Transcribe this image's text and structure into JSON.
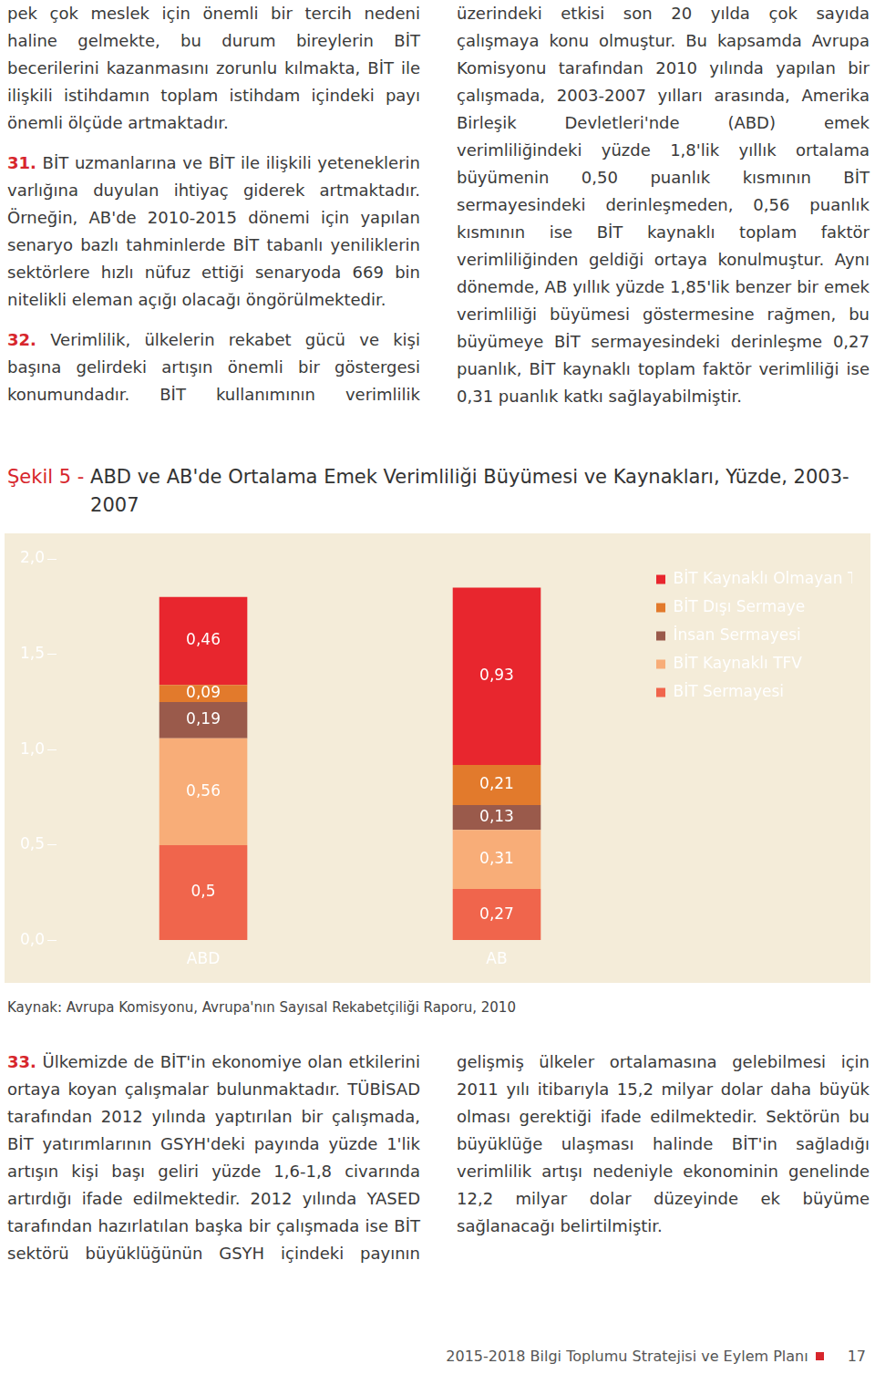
{
  "page": {
    "top_text": [
      {
        "number": null,
        "text": "pek çok meslek için önemli bir tercih nedeni haline gelmekte, bu durum bireylerin BİT becerilerini kazanmasını zorunlu kılmakta, BİT ile ilişkili istihdamın toplam istihdam içindeki payı önemli ölçüde artmaktadır."
      },
      {
        "number": "31.",
        "text": "BİT uzmanlarına ve BİT ile ilişkili yeteneklerin varlığına duyulan ihtiyaç giderek artmaktadır. Örneğin, AB'de 2010-2015 dönemi için yapılan senaryo bazlı tahminlerde BİT tabanlı yeniliklerin sektörlere hızlı nüfuz ettiği senaryoda 669 bin nitelikli eleman açığı olacağı öngörülmektedir."
      },
      {
        "number": "32.",
        "text": "Verimlilik, ülkelerin rekabet gücü ve kişi başına gelirdeki artışın önemli bir göstergesi konumundadır. BİT kullanımının verimlilik üzerindeki etkisi son 20 yılda çok sayıda çalışmaya konu olmuştur. Bu kapsamda Avrupa Komisyonu tarafından 2010 yılında yapılan bir çalışmada, 2003-2007 yılları arasında, Amerika Birleşik Devletleri'nde (ABD) emek verimliliğindeki yüzde 1,8'lik yıllık ortalama büyümenin 0,50 puanlık kısmının BİT sermayesindeki derinleşmeden, 0,56 puanlık kısmının ise BİT kaynaklı toplam faktör verimliliğinden geldiği ortaya konulmuştur. Aynı dönemde, AB yıllık yüzde 1,85'lik benzer bir emek verimliliği büyümesi göstermesine rağmen, bu büyümeye BİT sermayesindeki derinleşme 0,27 puanlık, BİT kaynaklı toplam faktör verimliliği ise 0,31 puanlık katkı sağlayabilmiştir."
      }
    ],
    "figure": {
      "label": "Şekil 5 - ",
      "source": "Kaynak: Avrupa Komisyonu, Avrupa'nın Sayısal Rekabetçiliği Raporu, 2010"
    },
    "bottom_text": [
      {
        "number": "33.",
        "text": "Ülkemizde de BİT'in ekonomiye olan etkilerini ortaya koyan çalışmalar bulunmaktadır. TÜBİSAD tarafından 2012 yılında yaptırılan bir çalışmada, BİT yatırımlarının GSYH'deki payında yüzde 1'lik artışın kişi başı geliri yüzde 1,6-1,8 civarında artırdığı ifade edilmektedir. 2012 yılında YASED tarafından hazırlatılan başka bir çalışmada ise BİT sektörü büyüklüğünün GSYH içindeki payının gelişmiş ülkeler ortalamasına gelebilmesi için 2011 yılı itibarıyla 15,2 milyar dolar daha büyük olması gerektiği ifade edilmektedir. Sektörün bu büyüklüğe ulaşması halinde BİT'in sağladığı verimlilik artışı nedeniyle ekonominin genelinde 12,2 milyar dolar düzeyinde ek büyüme sağlanacağı belirtilmiştir."
      }
    ],
    "footer": {
      "title": "2015-2018 Bilgi Toplumu Stratejisi ve Eylem Planı",
      "page": "17"
    }
  },
  "chart_data": {
    "type": "bar",
    "title": "ABD ve AB'de Ortalama Emek Verimliliği Büyümesi ve Kaynakları, Yüzde, 2003-2007",
    "categories": [
      "ABD",
      "AB"
    ],
    "series": [
      {
        "name": "BİT Sermayesi",
        "color": "#f0654c",
        "values": [
          0.5,
          0.27
        ],
        "value_labels": [
          "0,5",
          "0,27"
        ]
      },
      {
        "name": "BİT Kaynaklı TFV",
        "color": "#f8ad78",
        "values": [
          0.56,
          0.31
        ],
        "value_labels": [
          "0,56",
          "0,31"
        ]
      },
      {
        "name": "İnsan Sermayesi",
        "color": "#9a5a4b",
        "values": [
          0.19,
          0.13
        ],
        "value_labels": [
          "0,19",
          "0,13"
        ]
      },
      {
        "name": "BİT Dışı Sermaye",
        "color": "#e27a2c",
        "values": [
          0.09,
          0.21
        ],
        "value_labels": [
          "0,09",
          "0,21"
        ]
      },
      {
        "name": "BİT Kaynaklı Olmayan TFV",
        "color": "#e8262e",
        "values": [
          0.46,
          0.93
        ],
        "value_labels": [
          "0,46",
          "0,93"
        ]
      }
    ],
    "ylim": [
      0,
      2
    ],
    "yticks": [
      {
        "value": 0,
        "label": "0,0"
      },
      {
        "value": 0.5,
        "label": "0,5"
      },
      {
        "value": 1,
        "label": "1,0"
      },
      {
        "value": 1.5,
        "label": "1,5"
      },
      {
        "value": 2,
        "label": "2,0"
      }
    ],
    "stacked": true,
    "data_labels": true,
    "grid": false,
    "legend": "top-right"
  }
}
